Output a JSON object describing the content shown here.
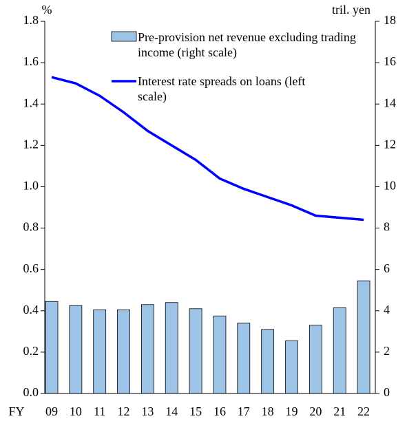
{
  "chart_data": {
    "type": "bar-line",
    "y_unit": "%",
    "y2_unit": "tril. yen",
    "x_prefix": "FY",
    "categories": [
      "09",
      "10",
      "11",
      "12",
      "13",
      "14",
      "15",
      "16",
      "17",
      "18",
      "19",
      "20",
      "21",
      "22"
    ],
    "series": [
      {
        "name": "Pre-provision net revenue excluding trading income (right scale)",
        "type": "bar",
        "axis": "y2",
        "color": "#9dc3e6",
        "values": [
          4.45,
          4.25,
          4.05,
          4.05,
          4.3,
          4.4,
          4.1,
          3.75,
          3.4,
          3.1,
          2.55,
          3.3,
          4.15,
          5.45
        ]
      },
      {
        "name": "Interest rate spreads on loans (left scale)",
        "type": "line",
        "axis": "y",
        "color": "#0000ff",
        "values": [
          1.53,
          1.5,
          1.44,
          1.36,
          1.27,
          1.2,
          1.13,
          1.04,
          0.99,
          0.95,
          0.91,
          0.86,
          0.85,
          0.84
        ]
      }
    ],
    "ylim": [
      0,
      1.8
    ],
    "yticks": [
      {
        "value": 0,
        "label": "0.0"
      },
      0.2,
      0.4,
      0.6,
      0.8,
      {
        "value": 1,
        "label": "1.0"
      },
      1.2,
      1.4,
      1.6,
      1.8
    ],
    "y2lim": [
      0,
      18
    ],
    "y2ticks": [
      0,
      2,
      4,
      6,
      8,
      10,
      12,
      14,
      16,
      18
    ]
  }
}
